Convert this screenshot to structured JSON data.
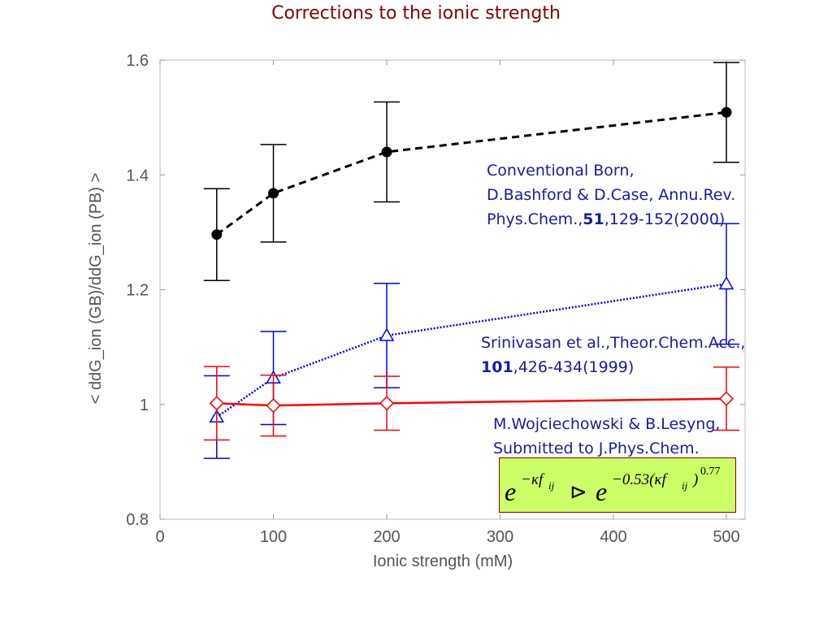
{
  "page": {
    "title": "Corrections to the ionic strength"
  },
  "annotations": {
    "born": {
      "line1": "Conventional Born,",
      "line2": "D.Bashford & D.Case, Annu.Rev.",
      "line3_pre": "Phys.Chem.,",
      "line3_bold": "51",
      "line3_post": ",129-152(2000)"
    },
    "srinivasan": {
      "line1": "Srinivasan et al.,Theor.Chem.Acc.,",
      "line2_bold": "101",
      "line2_post": ",426-434(1999)"
    },
    "wojciechowski": {
      "line1": "M.Wojciechowski & B.Lesyng,",
      "line2": "Submitted to J.Phys.Chem."
    },
    "formula": {
      "e1": "e",
      "exp1": "−κf",
      "exp1_sub": "ij",
      "arrow": "⊳",
      "e2": "e",
      "exp2": "−0.53(κf",
      "exp2_sub": "ij",
      "exp2_close": ")",
      "exp2_power": "0.77",
      "box_color": "#ccff66"
    }
  },
  "chart_data": {
    "type": "line",
    "title": "",
    "xlabel": "Ionic strength (mM)",
    "ylabel": "< ddG_ion (GB)/ddG_ion (PB) >",
    "xlim": [
      0,
      500
    ],
    "ylim": [
      0.8,
      1.6
    ],
    "x_scale": "piecewise: 0-400 linear, 500 placed at position after 400",
    "xticks": [
      0,
      100,
      200,
      300,
      400,
      500
    ],
    "xtick_labels": [
      "0",
      "100",
      "200",
      "300",
      "400",
      "500"
    ],
    "yticks": [
      0.8,
      1.0,
      1.2,
      1.4,
      1.6
    ],
    "ytick_labels": [
      "0.8",
      "1",
      "1.2",
      "1.4",
      "1.6"
    ],
    "grid": false,
    "series": [
      {
        "marker": "circle-filled",
        "color": "#000000",
        "line_style": "dashed",
        "x": [
          50,
          100,
          200,
          500
        ],
        "y": [
          1.296,
          1.368,
          1.44,
          1.509
        ],
        "err": [
          0.08,
          0.085,
          0.087,
          0.087
        ]
      },
      {
        "marker": "triangle-open",
        "color": "#0000ff",
        "line_style": "dotted",
        "x": [
          50,
          100,
          200,
          500
        ],
        "y": [
          0.978,
          1.046,
          1.12,
          1.21
        ],
        "err": [
          0.072,
          0.081,
          0.091,
          0.105
        ]
      },
      {
        "marker": "diamond-open",
        "color": "#ff0000",
        "line_style": "solid",
        "x": [
          50,
          100,
          200,
          500
        ],
        "y": [
          1.002,
          0.998,
          1.002,
          1.01
        ],
        "err": [
          0.064,
          0.053,
          0.047,
          0.055
        ]
      }
    ]
  }
}
